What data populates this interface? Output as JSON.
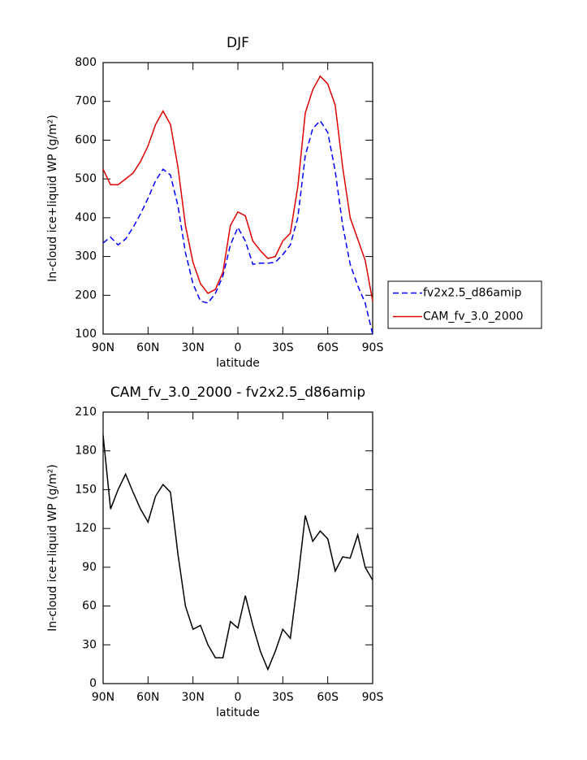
{
  "chart_data": [
    {
      "type": "line",
      "title": "DJF",
      "xlabel": "latitude",
      "ylabel": "In-cloud ice+liquid WP (g/m²)",
      "x": [
        90,
        85,
        80,
        75,
        70,
        65,
        60,
        55,
        50,
        45,
        40,
        35,
        30,
        25,
        20,
        15,
        10,
        5,
        0,
        -5,
        -10,
        -15,
        -20,
        -25,
        -30,
        -35,
        -40,
        -45,
        -50,
        -55,
        -60,
        -65,
        -70,
        -75,
        -80,
        -85,
        -90
      ],
      "series": [
        {
          "name": "fv2x2.5_d86amip",
          "color": "#0000ff",
          "dashed": true,
          "values": [
            335,
            350,
            330,
            345,
            375,
            410,
            450,
            495,
            525,
            510,
            430,
            310,
            230,
            185,
            180,
            205,
            250,
            330,
            375,
            340,
            280,
            283,
            283,
            285,
            305,
            330,
            400,
            560,
            630,
            650,
            620,
            520,
            380,
            280,
            225,
            180,
            100
          ]
        },
        {
          "name": "CAM_fv_3.0_2000",
          "color": "#e00000",
          "dashed": false,
          "values": [
            525,
            485,
            485,
            500,
            515,
            545,
            585,
            640,
            675,
            640,
            530,
            380,
            285,
            230,
            205,
            215,
            260,
            380,
            415,
            405,
            340,
            315,
            295,
            300,
            340,
            360,
            480,
            670,
            730,
            765,
            745,
            690,
            530,
            400,
            345,
            290,
            185
          ]
        }
      ],
      "xlim": [
        90,
        -90
      ],
      "xticks": [
        {
          "value": 90,
          "label": "90N"
        },
        {
          "value": 60,
          "label": "60N"
        },
        {
          "value": 30,
          "label": "30N"
        },
        0,
        {
          "value": -30,
          "label": "30S"
        },
        {
          "value": -60,
          "label": "60S"
        },
        {
          "value": -90,
          "label": "90S"
        }
      ],
      "ylim": [
        100,
        800
      ],
      "yticks": [
        100,
        200,
        300,
        400,
        500,
        600,
        700,
        800
      ],
      "legend": "right"
    },
    {
      "type": "line",
      "title": "CAM_fv_3.0_2000 - fv2x2.5_d86amip",
      "xlabel": "latitude",
      "ylabel": "In-cloud ice+liquid WP (g/m²)",
      "x": [
        90,
        85,
        80,
        75,
        70,
        65,
        60,
        55,
        50,
        45,
        40,
        35,
        30,
        25,
        20,
        15,
        10,
        5,
        0,
        -5,
        -10,
        -15,
        -20,
        -25,
        -30,
        -35,
        -40,
        -45,
        -50,
        -55,
        -60,
        -65,
        -70,
        -75,
        -80,
        -85,
        -90
      ],
      "series": [
        {
          "color": "#000000",
          "dashed": false,
          "values": [
            192,
            135,
            150,
            162,
            148,
            135,
            125,
            145,
            154,
            148,
            100,
            60,
            42,
            45,
            30,
            20,
            20,
            48,
            43,
            68,
            45,
            25,
            11,
            25,
            42,
            35,
            80,
            130,
            110,
            118,
            112,
            87,
            98,
            97,
            115,
            90,
            80
          ]
        }
      ],
      "xlim": [
        90,
        -90
      ],
      "xticks": [
        {
          "value": 90,
          "label": "90N"
        },
        {
          "value": 60,
          "label": "60N"
        },
        {
          "value": 30,
          "label": "30N"
        },
        0,
        {
          "value": -30,
          "label": "30S"
        },
        {
          "value": -60,
          "label": "60S"
        },
        {
          "value": -90,
          "label": "90S"
        }
      ],
      "ylim": [
        0,
        210
      ],
      "yticks": [
        0,
        30,
        60,
        90,
        120,
        150,
        180,
        210
      ]
    }
  ]
}
